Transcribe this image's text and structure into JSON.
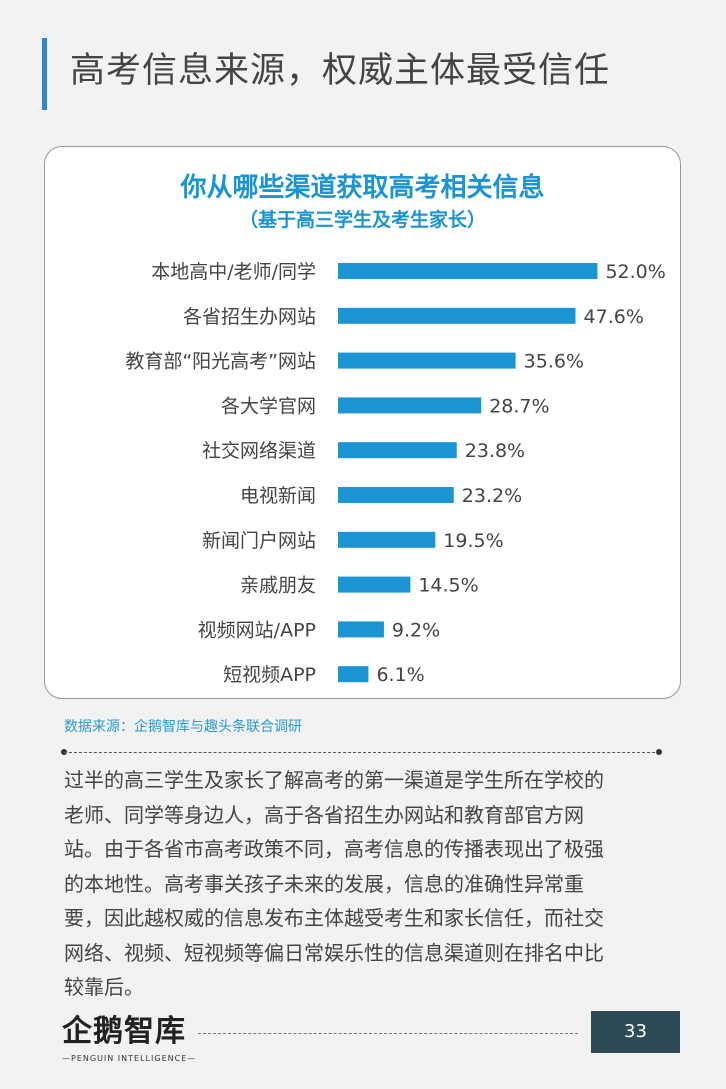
{
  "header": {
    "title": "高考信息来源，权威主体最受信任"
  },
  "chart_data": {
    "type": "bar",
    "orientation": "horizontal",
    "title": "你从哪些渠道获取高考相关信息",
    "subtitle": "（基于高三学生及考生家长）",
    "categories": [
      "本地高中/老师/同学",
      "各省招生办网站",
      "教育部“阳光高考”网站",
      "各大学官网",
      "社交网络渠道",
      "电视新闻",
      "新闻门户网站",
      "亲戚朋友",
      "视频网站/APP",
      "短视频APP"
    ],
    "values": [
      52.0,
      47.6,
      35.6,
      28.7,
      23.8,
      23.2,
      19.5,
      14.5,
      9.2,
      6.1
    ],
    "value_labels": [
      "52.0%",
      "47.6%",
      "35.6%",
      "28.7%",
      "23.8%",
      "23.2%",
      "19.5%",
      "14.5%",
      "9.2%",
      "6.1%"
    ],
    "unit": "%",
    "bar_color": "#1a94d2",
    "grid": false
  },
  "source": "数据来源：企鹅智库与趣头条联合调研",
  "body_lines": [
    "过半的高三学生及家长了解高考的第一渠道是学生所在学校的",
    "老师、同学等身边人，高于各省招生办网站和教育部官方网",
    "站。由于各省市高考政策不同，高考信息的传播表现出了极强",
    "的本地性。高考事关孩子未来的发展，信息的准确性异常重",
    "要，因此越权威的信息发布主体越受考生和家长信任，而社交",
    "网络、视频、短视频等偏日常娱乐性的信息渠道则在排名中比",
    "较靠后。"
  ],
  "footer": {
    "logo_text": "企鹅智库",
    "logo_subtext": "—PENGUIN INTELLIGENCE—",
    "page_number": "33"
  },
  "colors": {
    "accent": "#2e87c8",
    "page_badge": "#2d4a59"
  }
}
